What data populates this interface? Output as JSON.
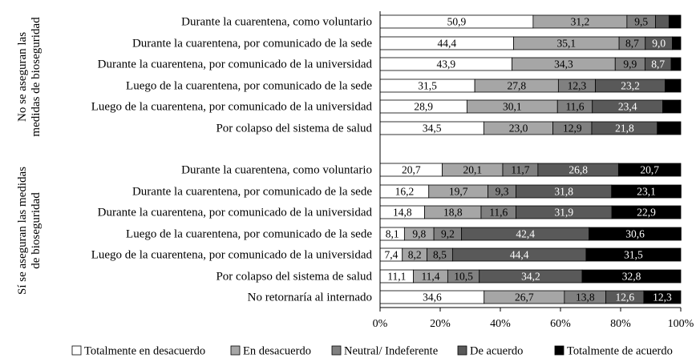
{
  "chart_data": {
    "type": "bar",
    "orientation": "horizontal",
    "stacked": true,
    "x_unit": "percent",
    "xlim": [
      0,
      100
    ],
    "x_ticks": [
      "0%",
      "20%",
      "40%",
      "60%",
      "80%",
      "100%"
    ],
    "groups": [
      {
        "label": "No se aseguran las medidas de bioseguridad",
        "label_lines": [
          "No se aseguran las",
          "medidas de bioseguridad"
        ]
      },
      {
        "label": "Sí se aseguran las medidas de bioseguridad",
        "label_lines": [
          "Sí se aseguran las medidas",
          "de bioseguridad"
        ]
      }
    ],
    "categories": [
      "Durante la cuarentena, como voluntario",
      "Durante la cuarentena, por comunicado de la sede",
      "Durante la cuarentena, por comunicado de la universidad",
      "Luego de la cuarentena, por comunicado de la sede",
      "Luego de la cuarentena, por comunicado de la universidad",
      "Por colapso  del sistema de salud",
      "Durante la cuarentena, como voluntario",
      "Durante la cuarentena, por comunicado de la sede",
      "Durante la cuarentena, por comunicado de la universidad",
      "Luego de la cuarentena, por comunicado de la sede",
      "Luego de la cuarentena, por comunicado de la universidad",
      "Por colapso del sistema de salud",
      "No retornaría al internado"
    ],
    "category_group": [
      0,
      0,
      0,
      0,
      0,
      0,
      1,
      1,
      1,
      1,
      1,
      1,
      1
    ],
    "series": [
      {
        "name": "Totalmente en desacuerdo",
        "color": "#ffffff",
        "values": [
          50.9,
          44.4,
          43.9,
          31.5,
          28.9,
          34.5,
          20.7,
          16.2,
          14.8,
          8.1,
          7.4,
          11.1,
          34.6
        ],
        "labels": [
          "50,9",
          "44,4",
          "43,9",
          "31,5",
          "28,9",
          "34,5",
          "20,7",
          "16,2",
          "14,8",
          "8,1",
          "7,4",
          "11,1",
          "34,6"
        ]
      },
      {
        "name": "En desacuerdo",
        "color": "#a6a6a6",
        "values": [
          31.2,
          35.1,
          34.3,
          27.8,
          30.1,
          23.0,
          20.1,
          19.7,
          18.8,
          9.8,
          8.2,
          11.4,
          26.7
        ],
        "labels": [
          "31,2",
          "35,1",
          "34,3",
          "27,8",
          "30,1",
          "23,0",
          "20,1",
          "19,7",
          "18,8",
          "9,8",
          "8,2",
          "11,4",
          "26,7"
        ]
      },
      {
        "name": "Neutral/ Indeferente",
        "color": "#808080",
        "values": [
          9.5,
          8.7,
          9.9,
          12.3,
          11.6,
          12.9,
          11.7,
          9.3,
          11.6,
          9.2,
          8.5,
          10.5,
          13.8
        ],
        "labels": [
          "9,5",
          "8,7",
          "9,9",
          "12,3",
          "11,6",
          "12,9",
          "11,7",
          "9,3",
          "11,6",
          "9,2",
          "8,5",
          "10,5",
          "13,8"
        ]
      },
      {
        "name": "De acuerdo",
        "color": "#595959",
        "values": [
          4.5,
          9.0,
          8.7,
          23.2,
          23.4,
          21.8,
          26.8,
          31.8,
          31.9,
          42.4,
          44.4,
          34.2,
          12.6
        ],
        "labels": [
          "",
          "9,0",
          "8,7",
          "23,2",
          "23,4",
          "21,8",
          "26,8",
          "31,8",
          "31,9",
          "42,4",
          "44,4",
          "34,2",
          "12,6"
        ]
      },
      {
        "name": "Totalmente de acuerdo",
        "color": "#000000",
        "values": [
          3.9,
          2.8,
          3.2,
          5.2,
          6.0,
          7.8,
          20.7,
          23.1,
          22.9,
          30.6,
          31.5,
          32.8,
          12.3
        ],
        "labels": [
          "",
          "",
          "",
          "",
          "",
          "",
          "20,7",
          "23,1",
          "22,9",
          "30,6",
          "31,5",
          "32,8",
          "12,3"
        ]
      }
    ],
    "legend_position": "bottom",
    "grid": false
  }
}
